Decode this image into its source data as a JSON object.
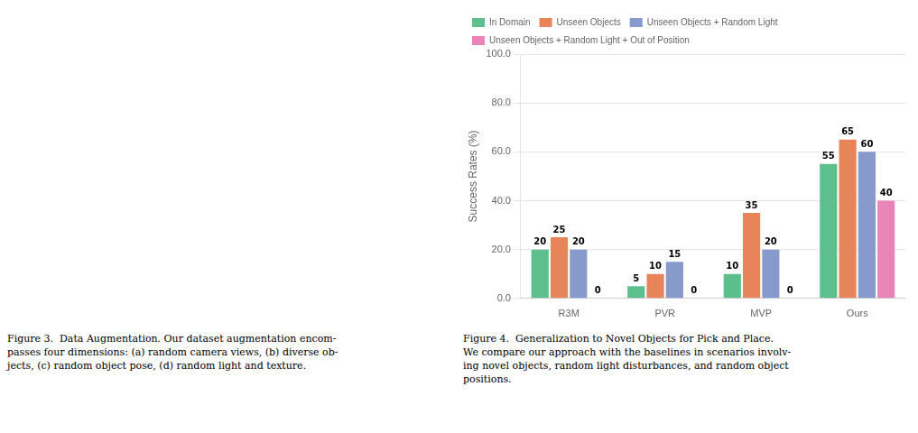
{
  "chart_data": {
    "type": "bar",
    "categories": [
      "R3M",
      "PVR",
      "MVP",
      "Ours"
    ],
    "series": [
      {
        "name": "In Domain",
        "color": "#5dbf8e",
        "values": [
          20,
          5,
          10,
          55
        ]
      },
      {
        "name": "Unseen Objects",
        "color": "#e8845a",
        "values": [
          25,
          10,
          35,
          65
        ]
      },
      {
        "name": "Unseen Objects + Random Light",
        "color": "#8899cc",
        "values": [
          20,
          15,
          20,
          60
        ]
      },
      {
        "name": "Unseen Objects + Random Light + Out of Position",
        "color": "#e884b8",
        "values": [
          0,
          0,
          0,
          40
        ]
      }
    ],
    "y_label": "Success Rates (%)",
    "ylim": [
      0,
      100
    ],
    "yticks": [
      {
        "value": 0,
        "label": "0.0"
      },
      {
        "value": 20,
        "label": "20.0"
      },
      {
        "value": 40,
        "label": "40.0"
      },
      {
        "value": 60,
        "label": "60.0"
      },
      {
        "value": 80,
        "label": "80.0"
      },
      {
        "value": 100,
        "label": "100.0"
      }
    ],
    "grid": true,
    "legend": "upper left",
    "data_labels": true,
    "annotations": [
      "Figure 3.  Data Augmentation. Our dataset augmentation encom-\npasses four dimensions: (a) random camera views, (b) diverse ob-\njects, (c) random object pose, (d) random light and texture.",
      "Figure 4.  Generalization to Novel Objects for Pick and Place.\nWe compare our approach with the baselines in scenarios involv-\ning novel objects, random light disturbances, and random object\npositions."
    ]
  }
}
